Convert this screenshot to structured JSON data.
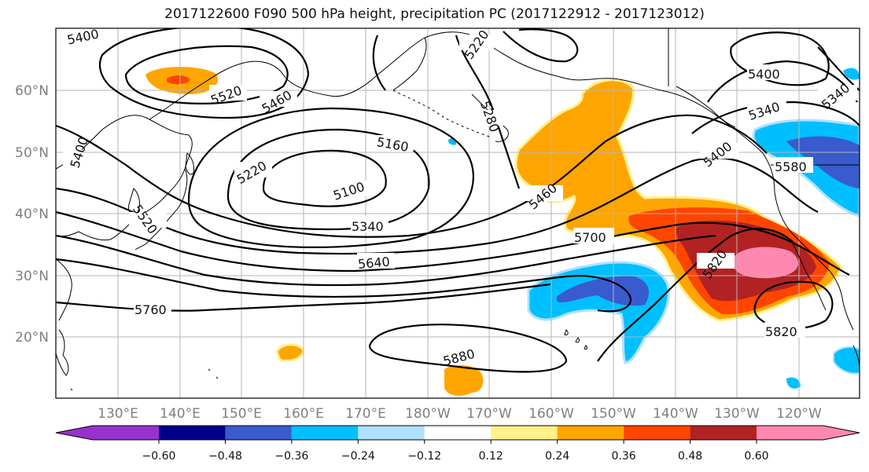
{
  "figure": {
    "title": "2017122600 F090 500 hPa height, precipitation PC (2017122912 - 2017123012)"
  },
  "map": {
    "lat_labels": [
      "60°N",
      "50°N",
      "40°N",
      "30°N",
      "20°N"
    ],
    "lon_labels": [
      "130°E",
      "140°E",
      "150°E",
      "160°E",
      "170°E",
      "180°W",
      "170°W",
      "160°W",
      "150°W",
      "140°W",
      "130°W",
      "120°W"
    ],
    "contour_labels": [
      "5400",
      "5520",
      "5460",
      "5220",
      "5160",
      "5100",
      "5340",
      "5640",
      "5760",
      "5880",
      "5280",
      "5460",
      "5700",
      "5820",
      "5820",
      "5400",
      "5340",
      "5580",
      "5400",
      "5340",
      "5520",
      "5400",
      "5220"
    ]
  },
  "colorbar": {
    "ticks": [
      "−0.60",
      "−0.48",
      "−0.36",
      "−0.24",
      "−0.12",
      "0.12",
      "0.24",
      "0.36",
      "0.48",
      "0.60"
    ],
    "colors": [
      "#9932cc",
      "#00008b",
      "#3a5bcd",
      "#00bfff",
      "#b0e0ff",
      "#ffffff",
      "#fff08a",
      "#ffa500",
      "#ff4500",
      "#b22222",
      "#ff88b0"
    ]
  }
}
